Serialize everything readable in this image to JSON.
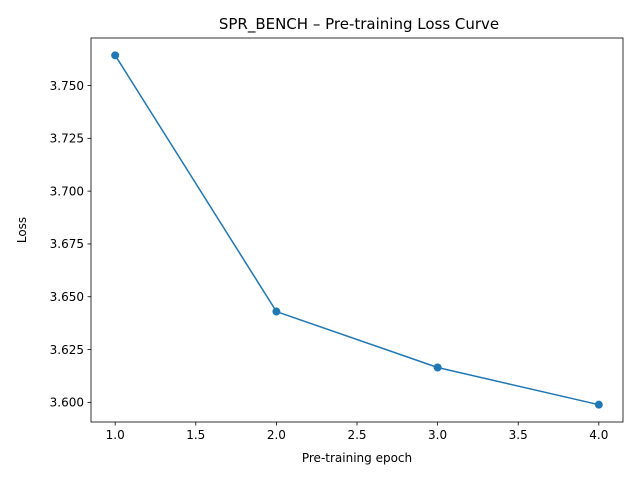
{
  "chart_data": {
    "type": "line",
    "title": "SPR_BENCH – Pre-training Loss Curve",
    "xlabel": "Pre-training epoch",
    "ylabel": "Loss",
    "x": [
      1.0,
      2.0,
      3.0,
      4.0
    ],
    "series": [
      {
        "values": [
          3.7643,
          3.643,
          3.6165,
          3.5989
        ],
        "color": "#1f77b4",
        "marker": "circle"
      }
    ],
    "xlim": [
      0.85,
      4.15
    ],
    "ylim": [
      3.5907,
      3.7725
    ],
    "xticks": [
      1.0,
      1.5,
      2.0,
      2.5,
      3.0,
      3.5,
      4.0
    ],
    "xtick_labels": [
      "1.0",
      "1.5",
      "2.0",
      "2.5",
      "3.0",
      "3.5",
      "4.0"
    ],
    "yticks": [
      3.6,
      3.625,
      3.65,
      3.675,
      3.7,
      3.725,
      3.75
    ],
    "ytick_labels": [
      "3.600",
      "3.625",
      "3.650",
      "3.675",
      "3.700",
      "3.725",
      "3.750"
    ],
    "grid": false,
    "legend": "none"
  }
}
